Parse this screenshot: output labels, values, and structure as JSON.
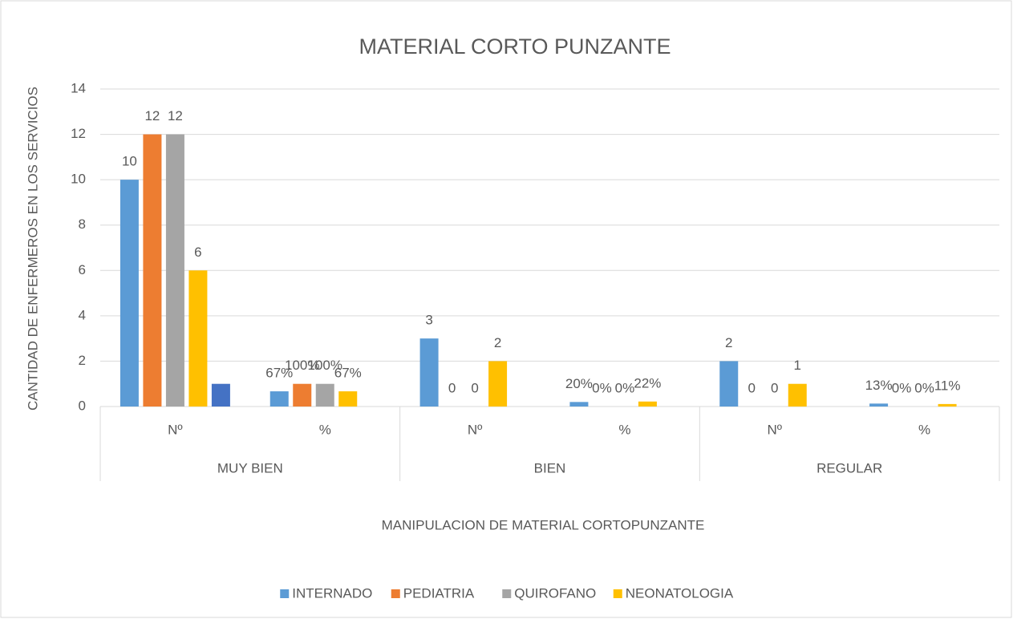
{
  "chart_data": {
    "type": "bar",
    "title": "MATERIAL CORTO PUNZANTE",
    "x_label": "MANIPULACION DE MATERIAL CORTOPUNZANTE",
    "y_label": "CANTIDAD DE ENFERMEROS EN LOS SERVICIOS",
    "categories": [
      "Nº",
      "%",
      "Nº",
      "%",
      "Nº",
      "%"
    ],
    "groups": [
      "MUY BIEN",
      "BIEN",
      "REGULAR"
    ],
    "series": [
      {
        "name": "INTERNADO",
        "color": "#5b9bd5",
        "values": [
          10,
          0.67,
          3,
          0.2,
          2,
          0.13
        ],
        "value_labels": [
          "10",
          "67%",
          "3",
          "20%",
          "2",
          "13%"
        ]
      },
      {
        "name": "PEDIATRIA",
        "color": "#ed7d31",
        "values": [
          12,
          1,
          0,
          0,
          0,
          0
        ],
        "value_labels": [
          "12",
          "100%",
          "0",
          "0%",
          "0",
          "0%"
        ]
      },
      {
        "name": "QUIROFANO",
        "color": "#a5a5a5",
        "values": [
          12,
          1,
          0,
          0,
          0,
          0
        ],
        "value_labels": [
          "12",
          "100%",
          "0",
          "0%",
          "0",
          "0%"
        ]
      },
      {
        "name": "NEONATOLOGIA",
        "color": "#ffc000",
        "values": [
          6,
          0.67,
          2,
          0.22,
          1,
          0.11
        ],
        "value_labels": [
          "6",
          "67%",
          "2",
          "22%",
          "1",
          "11%"
        ]
      },
      {
        "color": "#4472c4",
        "values": [
          1,
          null,
          null,
          null,
          null,
          null
        ]
      }
    ],
    "ylim": [
      0,
      14
    ],
    "yticks": [
      0,
      2,
      4,
      6,
      8,
      10,
      12,
      14
    ],
    "grid": true,
    "legend": "bottom"
  }
}
